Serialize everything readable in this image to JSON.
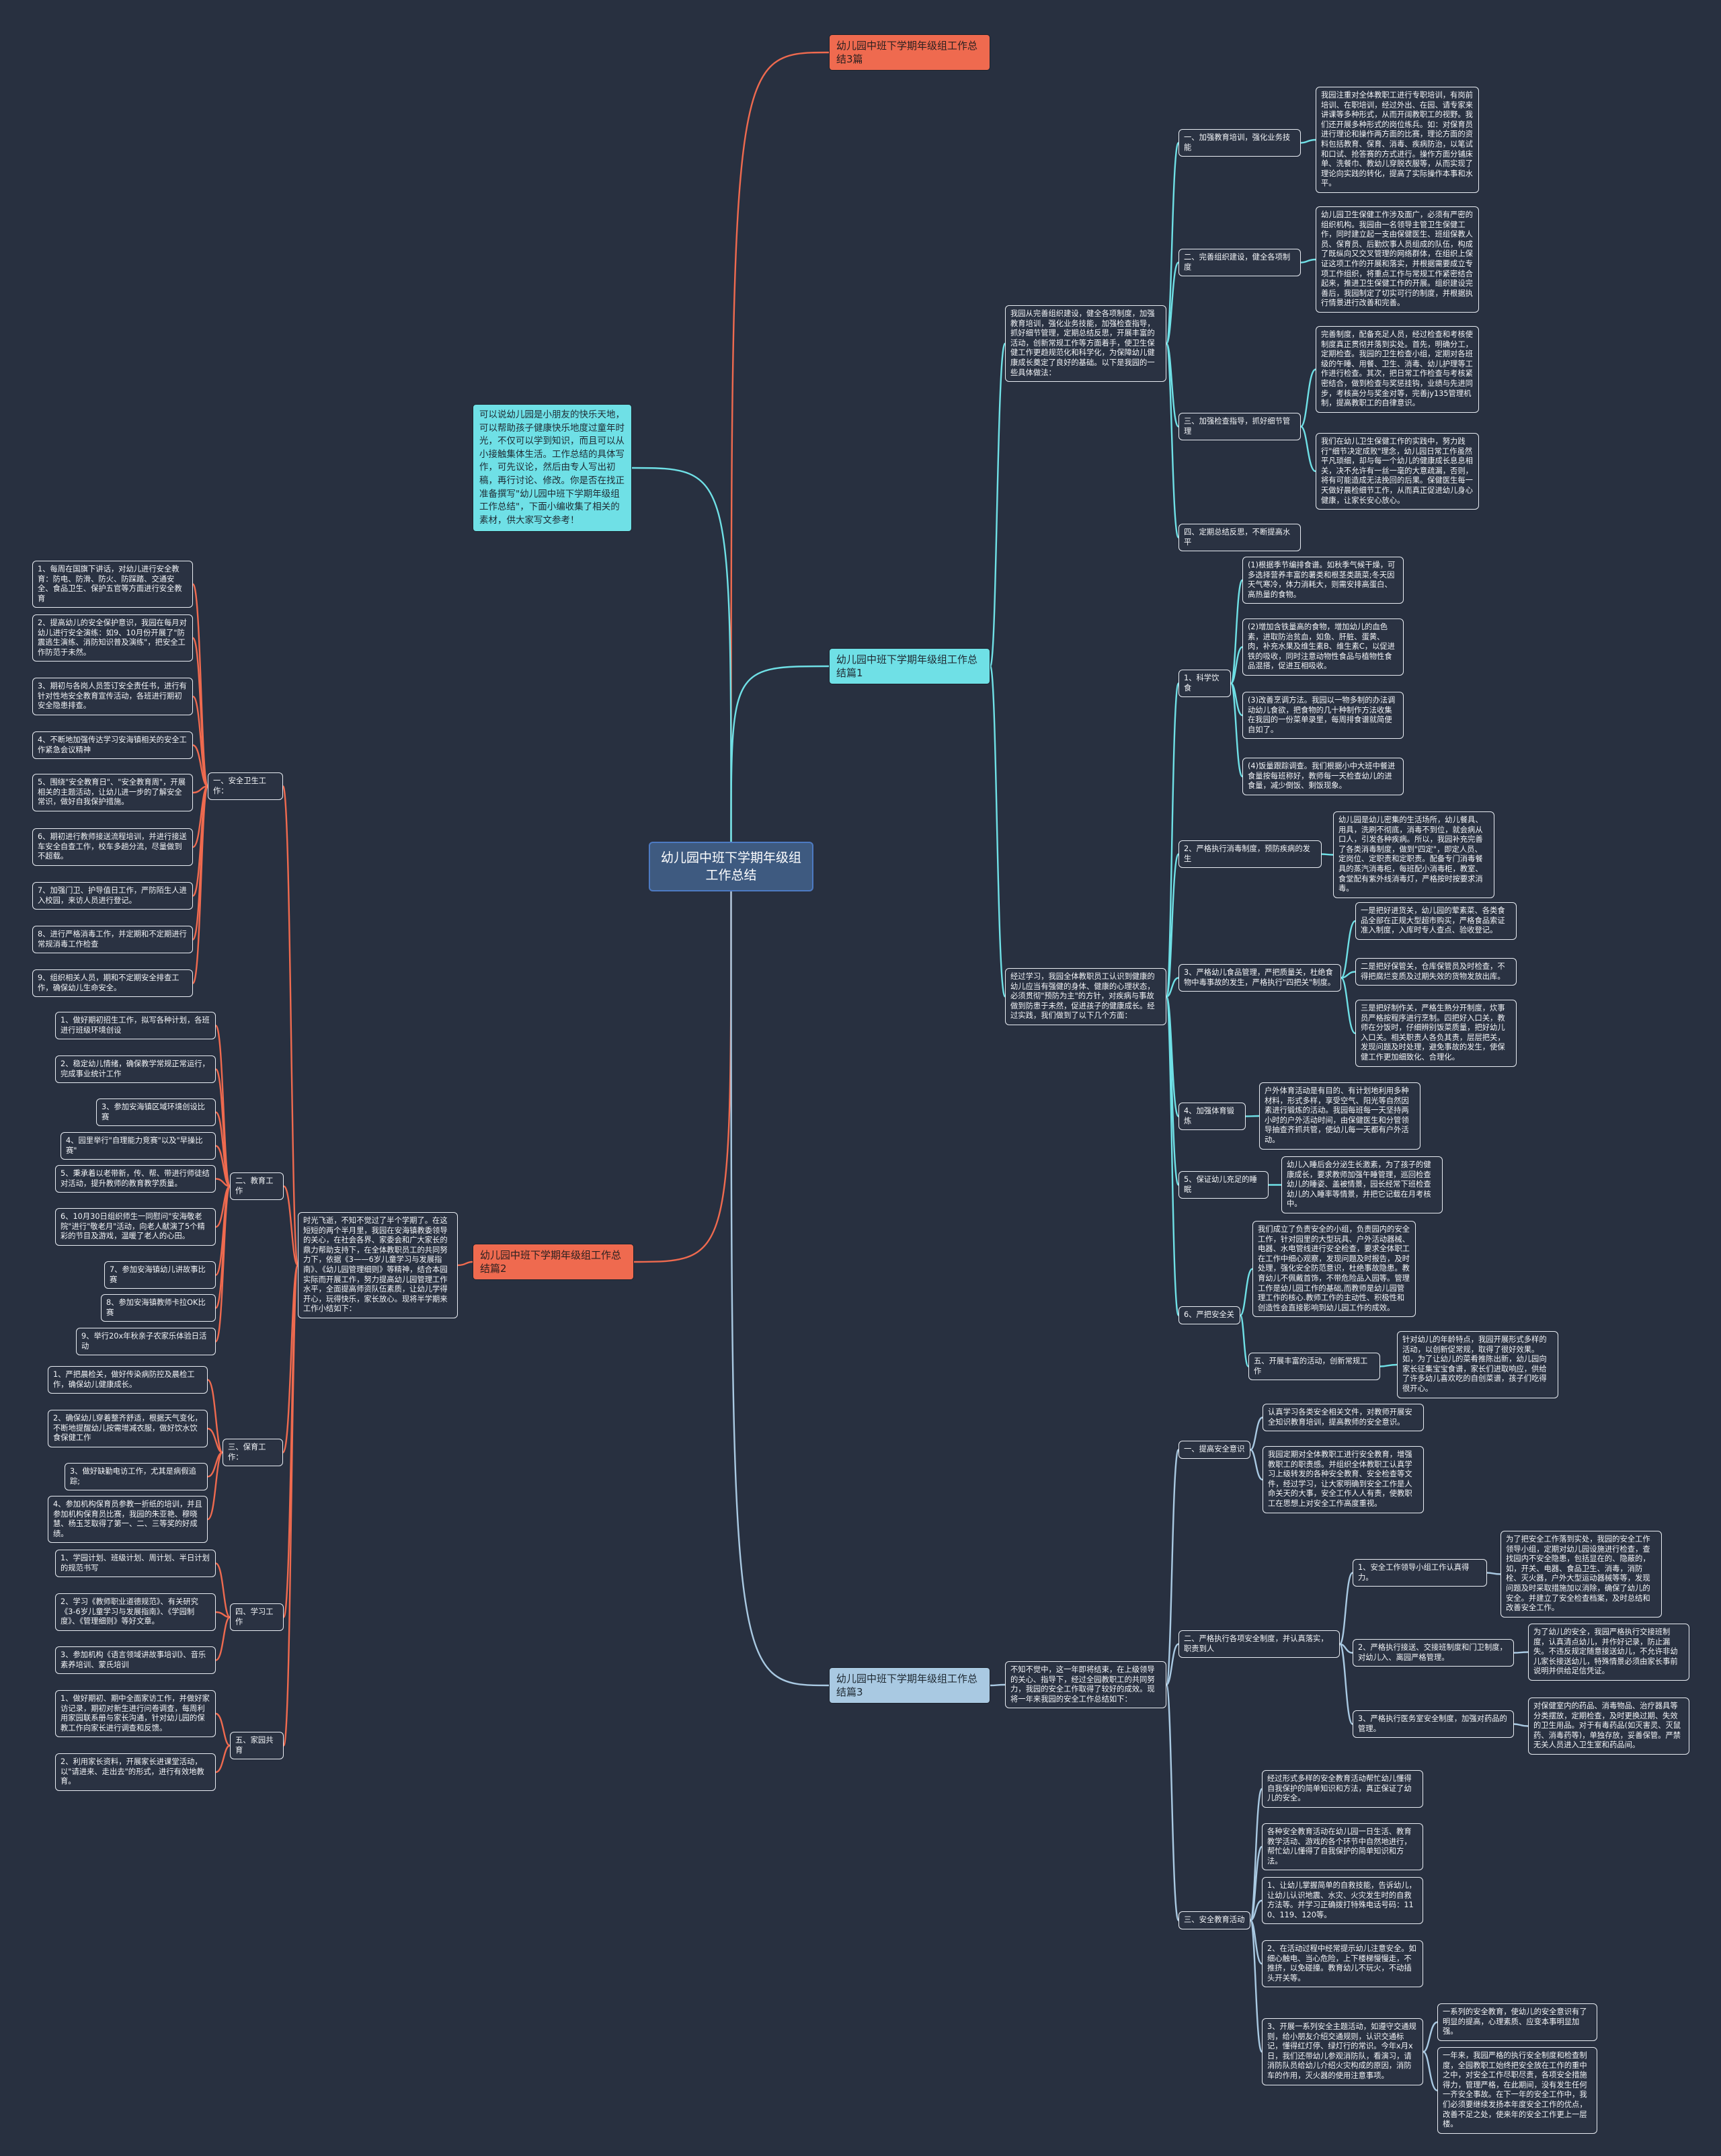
{
  "colors": {
    "background": "#283040",
    "article1": "#6fe0e6",
    "article2": "#ef6a4f",
    "article3": "#a9c9e2",
    "root": "#3e5a80"
  },
  "root": "幼儿园中班下学期年级组工作总结",
  "overview": {
    "title": "幼儿园中班下学期年级组工作总结3篇",
    "text": "可以说幼儿园是小朋友的快乐天地，可以帮助孩子健康快乐地度过童年时光，不仅可以学到知识，而且可以从小接触集体生活。工作总结的具体写作，可先议论，然后由专人写出初稿，再行讨论、修改。你是否在找正准备撰写\"幼儿园中班下学期年级组工作总结\"，下面小编收集了相关的素材，供大家写文参考！"
  },
  "p1": {
    "title": "幼儿园中班下学期年级组工作总结篇1",
    "a": {
      "text": "我园从完善组织建设，健全各项制度，加强教育培训，强化业务技能，加强检查指导，抓好细节管理，定期总结反思，开展丰富的活动，创新常规工作等方面着手，使卫生保健工作更趋规范化和科学化，为保障幼儿健康成长奠定了良好的基础。以下是我园的一些具体做法：",
      "s": [
        {
          "label": "一、加强教育培训，强化业务技能",
          "d": [
            "我园注重对全体教职工进行专职培训，有岗前培训、在职培训，经过外出、在园、请专家来讲课等多种形式，从而开阔教职工的视野。我们还开展多种形式的岗位练兵。如：对保育员进行理论和操作两方面的比赛，理论方面的资料包括教育、保育、消毒、疾病防治，以笔试和口试、抢答赛的方式进行。操作方面分铺床单、洗餐巾、教幼儿穿脱衣服等，从而实现了理论向实践的转化，提高了实际操作本事和水平。"
          ]
        },
        {
          "label": "二、完善组织建设，健全各项制度",
          "d": [
            "幼儿园卫生保健工作涉及面广，必须有严密的组织机构。我园由一名领导主管卫生保健工作，同时建立起一支由保健医生、班组保教人员、保育员、后勤炊事人员组成的队伍，构成了既纵向又交叉管理的网络群体，在组织上保证这项工作的开展和落实，并根据需要成立专项工作组织，将重点工作与常规工作紧密结合起来，推进卫生保健工作的开展。组织建设完善后，我园制定了切实可行的制度，并根据执行情景进行改善和完善。"
          ]
        },
        {
          "label": "三、加强检查指导，抓好细节管理",
          "d": [
            "完善制度，配备充足人员，经过检查和考核使制度真正贯彻并落到实处。首先，明确分工，定期检查。我园的卫生检查小组，定期对各班级的午睡、用餐、卫生、消毒、幼儿护理等工作进行检查。其次，把日常工作检查与考核紧密结合，做到检查与奖惩挂钩，业绩与先进同步，考核高分与奖金对等，完善jy135管理机制，提高教职工的自律意识。",
            "我们在幼儿卫生保健工作的实践中，努力践行\"细节决定成败\"理念，幼儿园日常工作虽然平凡琐细，却与每一个幼儿的健康成长息息相关，决不允许有一丝一毫的大意疏漏，否则，将有可能造成无法挽回的后果。保健医生每一天做好晨检细节工作，从而真正促进幼儿身心健康，让家长安心放心。"
          ]
        },
        {
          "label": "四、定期总结反思，不断提高水平",
          "d": []
        }
      ]
    },
    "b": {
      "text": "经过学习，我园全体教职员工认识到健康的幼儿应当有强健的身体、健康的心理状态，必须贯彻\"预防为主\"的方针，对疾病与事故做到防患于未然，促进孩子的健康成长。经过实践，我们做到了以下几个方面：",
      "s": [
        {
          "label": "1、科学饮食",
          "d": [
            "(1)根据季节编排食谱。如秋季气候干燥，可多选择营养丰富的薯类和根茎类蔬菜;冬天因天气寒冷，体力消耗大，则需安排高蛋白、高热量的食物。",
            "(2)增加含铁量高的食物，增加幼儿的血色素，进取防治贫血，如鱼、肝脏、蛋黄、肉，补充水果及维生素B、维生素C，以促进铁的吸收，同时注意动物性食品与植物性食品混搭，促进互相吸收。",
            "(3)改善烹调方法。我园以一物多制的办法调动幼儿食欲，把食物的几十种制作方法收集在我园的一份菜单录里，每周排食谱就简便自如了。",
            "(4)饭量跟踪调查。我们根据小中大班中餐进食量按每班称好，教师每一天检查幼儿的进食量，减少倒饭、剩饭现象。"
          ]
        },
        {
          "label": "2、严格执行消毒制度，预防疾病的发生",
          "d": [
            "幼儿园是幼儿密集的生活场所，幼儿餐具、用具，洗刷不彻底，消毒不到位，就会病从口人，引发各种疾病。所以，我园补充完善了各类消毒制度，做到\"四定\"，即定人员、定岗位、定职责和定职责。配备专门消毒餐具的蒸汽消毒柜，每班配小消毒柜，教室、食堂配有紫外线消毒灯，严格按时按要求消毒。"
          ]
        },
        {
          "label": "3、严格幼儿食品管理，严把质量关，杜绝食物中毒事故的发生，严格执行\"四把关\"制度。",
          "d": [
            "一是把好进货关，幼儿园的荤素菜、各类食品全部在正规大型超市购买，严格食品索证准入制度，入库时专人查点、验收登记。",
            "二是把好保管关，仓库保管员及时检查，不得把腐烂变质及过期失效的货物发放出库。",
            "三是把好制作关，严格生熟分开制度，炊事员严格按程序进行烹制。四把好入口关，教师在分饭时，仔细辨别饭菜质量，把好幼儿入口关。相关职责人各负其责，层层把关，发现问题及时处理，避免事故的发生，使保健工作更加细致化、合理化。"
          ]
        },
        {
          "label": "4、加强体育锻炼",
          "d": [
            "户外体育活动是有目的、有计划地利用多种材料，形式多样，享受空气、阳光等自然因素进行锻炼的活动。我园每班每一天坚持两小时的户外活动时间，由保健医生和分管领导抽查齐抓共管，使幼儿每一天都有户外活动。"
          ]
        },
        {
          "label": "5、保证幼儿充足的睡眠",
          "d": [
            "幼儿入睡后会分泌生长激素，为了孩子的健康成长，要求教师加强午睡管理，巡回检查幼儿的睡姿、盖被情景，园长经常下班检查幼儿的入睡率等情景，并把它记载在月考核中。"
          ]
        },
        {
          "label": "6、严把安全关",
          "d": [
            "我们成立了负责安全的小组，负责园内的安全工作，针对园里的大型玩具、户外活动器械、电器、水电管线进行安全检查，要求全体职工在工作中细心观察，发现问题及时报告，及时处理，强化安全防范意识，杜绝事故隐患。教育幼儿不佩戴首饰，不带危险品入园等。管理工作是幼儿园工作的基础,而教师是幼儿园管理工作的核心.教师工作的主动性、积极性和创造性会直接影响到幼儿园工作的成效。"
          ],
          "sub": {
            "label": "五、开展丰富的活动，创新常规工作",
            "d": "针对幼儿的年龄特点，我园开展形式多样的活动，以创新促常规，取得了很好效果。如，为了让幼儿的菜肴推陈出新，幼儿园向家长征集宝宝食谱，家长们进取响应，供给了许多幼儿喜欢吃的自创菜谱，孩子们吃得很开心。"
          }
        }
      ]
    }
  },
  "p2": {
    "title": "幼儿园中班下学期年级组工作总结篇2",
    "text": "时光飞逝，不知不觉过了半个学期了。在这短短的两个半月里，我园在安海镇教委领导的关心，在社会各界、家委会和广大家长的鼎力帮助支持下，在全体教职员工的共同努力下，依据《3——6岁儿童学习与发展指南》、《幼儿园管理细则》等精神，结合本园实际而开展工作，努力提高幼儿园管理工作水平，全面提高师资队伍素质，让幼儿学得开心，玩得快乐，家长放心。现将半学期来工作小结如下：",
    "c": [
      {
        "label": "一、安全卫生工作：",
        "items": [
          "1、每周在国旗下讲话，对幼儿进行安全教育：防电、防滑、防火、防踩踏、交通安全、食品卫生、保护五官等方面进行安全教育",
          "2、提高幼儿的安全保护意识，我园在每月对幼儿进行安全演练：如9、10月份开展了\"防震逃生演练、消防知识普及演练\"，把安全工作防范于未然。",
          "3、期初与各岗人员签订安全责任书，进行有针对性地安全教育宣传活动，各班进行期初安全隐患排查。",
          "4、不断地加强传达学习安海镇相关的安全工作紧急会议精神",
          "5、围绕\"安全教育日\"、\"安全教育周\"，开展相关的主题活动，让幼儿进一步的了解安全常识，做好自我保护措施。",
          "6、期初进行教师接送流程培训，并进行接送车安全自查工作，校车多趟分流，尽量做到不超载。",
          "7、加强门卫、护导值日工作，严防陌生人进入校园，来访人员进行登记。",
          "8、进行严格消毒工作，并定期和不定期进行常规消毒工作检查",
          "9、组织相关人员，期和不定期安全排查工作，确保幼儿生命安全。"
        ]
      },
      {
        "label": "二、教育工作",
        "items": [
          "1、做好期初招生工作，拟写各种计划，各班进行班级环境创设",
          "2、稳定幼儿情绪，确保教学常规正常运行，完成事业统计工作",
          "3、参加安海镇区域环境创设比赛",
          "4、园里举行\"自理能力竞赛\"以及\"早操比赛\"",
          "5、秉承着以老带新，传、帮、带进行师徒结对活动，提升教师的教育教学质量。",
          "6、10月30日组织师生一同慰问\"安海敬老院\"进行\"敬老月\"活动，向老人献演了5个精彩的节目及游戏，温暖了老人的心田。",
          "7、参加安海镇幼儿讲故事比赛",
          "8、参加安海镇教师卡拉OK比赛",
          "9、举行20x年秋亲子农家乐体验日活动"
        ]
      },
      {
        "label": "三、保育工作：",
        "items": [
          "1、严把晨检关，做好传染病防控及晨检工作，确保幼儿健康成长。",
          "2、确保幼儿穿着整齐舒适，根据天气变化，不断地提醒幼儿按需增减衣服，做好饮水饮食保健工作",
          "3、做好缺勤电访工作，尤其是病假追踪;",
          "4、参加机构保育员参教一折纸的培训，并且参加机构保育员比赛，我园的朱亚艳、穆晓慧、杨玉芝取得了第一、二、三等奖的好成绩。"
        ]
      },
      {
        "label": "四、学习工作",
        "items": [
          "1、学园计划、班级计划、周计划、半日计划的规范书写",
          "2、学习《教师职业道德规范》、有关研究《3-6岁儿童学习与发展指南》、《学园制度》、《管理细则》等好文章。",
          "3、参加机构《语言领域讲故事培训》、音乐素养培训、蒙氏培训"
        ]
      },
      {
        "label": "五、家园共育",
        "items": [
          "1、做好期初、期中全面家访工作，并做好家访记录，期初对新生进行问卷调查，每周利用家园联系册与家长沟通，针对幼儿园的保教工作向家长进行调查和反馈。",
          "2、利用家长资料，开展家长进课堂活动，以\"请进来、走出去\"的形式，进行有效地教育。"
        ]
      }
    ]
  },
  "p3": {
    "title": "幼儿园中班下学期年级组工作总结篇3",
    "text": "不知不觉中，这一年即将结束，在上级领导的关心、指导下，经过全园教职工的共同努力，我园的安全工作取得了较好的成效。现将一年来我园的安全工作总结如下：",
    "s": [
      {
        "label": "一、提高安全意识",
        "d": [
          "认真学习各类安全相关文件，对教师开展安全知识教育培训，提高教师的安全意识。",
          "我园定期对全体教职工进行安全教育，增强教职工的职责感。并组织全体教职工认真学习上级转发的各种安全教育、安全检查等文件，经过学习，让大家明确到安全工作是人命关天的大事，安全工作人人有责，使教职工在思想上对安全工作高度重视。"
        ]
      },
      {
        "label": "二、严格执行各项安全制度，并认真落实，职责到人",
        "sub": [
          {
            "label": "1、安全工作领导小组工作认真得力。",
            "d": "为了把安全工作落到实处，我园的安全工作领导小组，定期对幼儿园设施进行检查，查找园内不安全隐患，包括显在的、隐蔽的，如，开关、电器、食品卫生、消毒，消防栓、灭火器，户外大型运动器械等等，发现问题及时采取措施加以消除，确保了幼儿的安全。并建立了安全检查档案，及时总结和改善安全工作。"
          },
          {
            "label": "2、严格执行接送、交接班制度和门卫制度，对幼儿入、离园严格管理。",
            "d": "为了幼儿的安全，我园严格执行交接班制度，认真清点幼儿，并作好记录，防止漏失。不违反规定随意接送幼儿，不允许非幼儿家长接送幼儿，特殊情景必须由家长事前说明并供给足信凭证。"
          },
          {
            "label": "3、严格执行医务室安全制度，加强对药品的管理。",
            "d": "对保健室内的药品、消毒物品、治疗器具等分类摆放，定期检查，及时更换过期、失效的卫生用品。对于有毒药品(如灭害灵、灭鼠药、消毒药等)，单独存放，妥善保管。严禁无关人员进入卫生室和药品间。"
          }
        ]
      },
      {
        "label": "三、安全教育活动",
        "d": [
          "经过形式多样的安全教育活动帮忙幼儿懂得自我保护的简单知识和方法，真正保证了幼儿的安全。",
          "各种安全教育活动在幼儿园一日生活、教育教学活动、游戏的各个环节中自然地进行，帮忙幼儿懂得了自我保护的简单知识和方法。",
          "1、让幼儿掌握简单的自救技能，告诉幼儿，让幼儿认识地震、水灾、火灾发生时的自救方法等。并学习正确拨打特殊电话号码：110、119、120等。",
          "2、在活动过程中经常提示幼儿注意安全。如细心触电、当心危险，上下楼梯慢慢走，不推挤，以免碰撞。教育幼儿不玩火，不动插头开关等。",
          "3、开展一系列安全主题活动，如遵守交通规则，给小朋友介绍交通规则，认识交通标记，懂得红灯停、绿灯行的常识。今年x月x日，我们还带幼儿参观消防队，看演习，请消防队员给幼儿介绍火灾构成的原因，消防车的作用，灭火器的使用注意事项。"
        ],
        "sub": [
          "一系列的安全教育，使幼儿的安全意识有了明显的提高，心理素质、应变本事明显加强。",
          "一年来，我园严格的执行安全制度和检查制度，全园教职工始终把安全放在工作的重中之中，对安全工作尽职尽责，各项安全措施得力，管理严格，在此期间，没有发生任何一齐安全事故。在下一年的安全工作中，我们必须要继续发扬本年度安全工作的优点，改善不足之处，使来年的安全工作更上一层楼。"
        ]
      }
    ]
  }
}
